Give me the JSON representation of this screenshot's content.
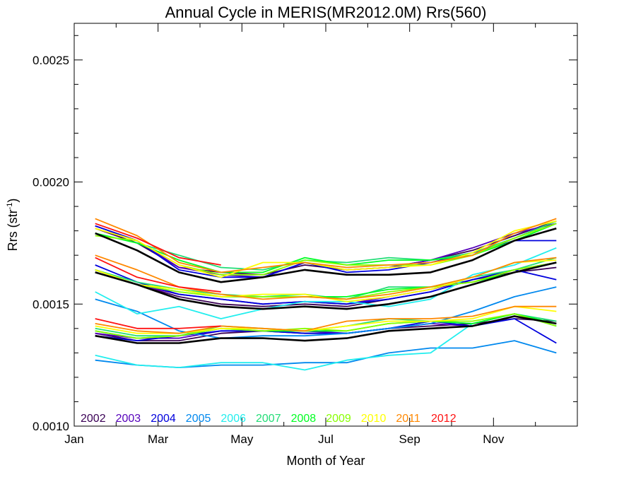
{
  "chart_data": {
    "type": "line",
    "title": "Annual Cycle in MERIS(MR2012.0M) Rrs(560)",
    "xlabel": "Month of Year",
    "ylabel_main": "Rrs (str",
    "ylabel_sup": "-1",
    "ylabel_tail": ")",
    "xlim": [
      0,
      12
    ],
    "ylim": [
      0.001,
      0.00265
    ],
    "x_ticks": [
      {
        "v": 0,
        "label": "Jan"
      },
      {
        "v": 2,
        "label": "Mar"
      },
      {
        "v": 4,
        "label": "May"
      },
      {
        "v": 6,
        "label": "Jul"
      },
      {
        "v": 8,
        "label": "Sep"
      },
      {
        "v": 10,
        "label": "Nov"
      }
    ],
    "y_ticks": [
      {
        "v": 0.001,
        "label": "0.0010"
      },
      {
        "v": 0.0015,
        "label": "0.0015"
      },
      {
        "v": 0.002,
        "label": "0.0020"
      },
      {
        "v": 0.0025,
        "label": "0.0025"
      }
    ],
    "legend_position": "bottom-left",
    "x": [
      0.5,
      1.5,
      2.5,
      3.5,
      4.5,
      5.5,
      6.5,
      7.5,
      8.5,
      9.5,
      10.5,
      11.5
    ],
    "series": [
      {
        "name": "2002",
        "color": "#3a0055",
        "values": [
          [
            0.00181,
            0.00175,
            0.00165,
            0.00163,
            0.00162,
            0.00166,
            0.00164,
            0.00165,
            0.00168,
            0.00172,
            0.00178,
            0.00184
          ],
          [
            0.00163,
            0.00158,
            0.00153,
            0.0015,
            0.00149,
            0.0015,
            0.00149,
            0.00152,
            0.00155,
            0.0016,
            0.00163,
            0.00165
          ],
          [
            0.00138,
            0.00135,
            0.00135,
            0.00138,
            0.00139,
            0.00138,
            0.00138,
            0.0014,
            0.00141,
            0.00142,
            0.00144,
            0.00143
          ]
        ]
      },
      {
        "name": "2003",
        "color": "#5500bb",
        "values": [
          [
            0.00182,
            0.00176,
            0.00165,
            0.00162,
            0.00161,
            0.00167,
            0.00164,
            0.00165,
            0.00168,
            0.00173,
            0.00179,
            0.00183
          ],
          [
            0.00164,
            0.00158,
            0.00154,
            0.00152,
            0.0015,
            0.00151,
            0.0015,
            0.00153,
            0.00156,
            0.0016,
            0.00164,
            0.00167
          ],
          [
            0.00138,
            0.00136,
            0.00136,
            0.00139,
            0.00139,
            0.00139,
            0.00138,
            0.0014,
            0.00142,
            0.00141,
            0.00145,
            0.00142
          ]
        ]
      },
      {
        "name": "2004",
        "color": "#0000dd",
        "values": [
          [
            0.00182,
            0.00176,
            0.00164,
            0.00161,
            0.00161,
            0.00167,
            0.00163,
            0.00164,
            0.00167,
            0.00171,
            0.00176,
            0.00176
          ],
          [
            0.00166,
            0.00159,
            0.00154,
            0.00152,
            0.0015,
            0.00151,
            0.0015,
            0.00152,
            0.00155,
            0.0016,
            0.00164,
            0.0016
          ],
          [
            0.00137,
            0.00135,
            0.00137,
            0.00139,
            0.00139,
            0.00138,
            0.00138,
            0.0014,
            0.00143,
            0.00141,
            0.00144,
            0.00134
          ]
        ]
      },
      {
        "name": "2005",
        "color": "#0088ee",
        "values": [
          [
            0.00152,
            0.00147,
            0.00139,
            0.00136,
            0.00137,
            0.00137,
            0.00138,
            0.0014,
            0.00142,
            0.00147,
            0.00153,
            0.00157
          ],
          [
            0.00127,
            0.00125,
            0.00124,
            0.00125,
            0.00125,
            0.00126,
            0.00126,
            0.0013,
            0.00132,
            0.00132,
            0.00135,
            0.0013
          ]
        ]
      },
      {
        "name": "2006",
        "color": "#22eeee",
        "values": [
          [
            0.00155,
            0.00146,
            0.00149,
            0.00144,
            0.00148,
            0.00151,
            0.00151,
            0.00149,
            0.00152,
            0.00162,
            0.00166,
            0.00173
          ],
          [
            0.00129,
            0.00125,
            0.00124,
            0.00126,
            0.00126,
            0.00123,
            0.00127,
            0.00129,
            0.0013,
            0.00142,
            0.00146,
            0.00141
          ]
        ]
      },
      {
        "name": "2007",
        "color": "#22dd77",
        "values": [
          [
            0.00179,
            0.00175,
            0.0017,
            0.00165,
            0.00164,
            0.00168,
            0.00167,
            0.00169,
            0.00168,
            0.00171,
            0.00177,
            0.00184
          ],
          [
            0.00164,
            0.00159,
            0.00156,
            0.00154,
            0.00153,
            0.00154,
            0.00152,
            0.00157,
            0.00157,
            0.00161,
            0.00164,
            0.00169
          ],
          [
            0.0014,
            0.00137,
            0.00137,
            0.00141,
            0.0014,
            0.00139,
            0.00141,
            0.00144,
            0.00143,
            0.00142,
            0.00146,
            0.00143
          ]
        ]
      },
      {
        "name": "2008",
        "color": "#00ff22",
        "values": [
          [
            0.00179,
            0.00175,
            0.00168,
            0.00163,
            0.00163,
            0.00169,
            0.00166,
            0.00168,
            0.00168,
            0.0017,
            0.00176,
            0.00183
          ],
          [
            0.00164,
            0.00158,
            0.00156,
            0.00153,
            0.00153,
            0.00153,
            0.00153,
            0.00156,
            0.00157,
            0.00159,
            0.00163,
            0.00167
          ],
          [
            0.00139,
            0.00136,
            0.00137,
            0.0014,
            0.00139,
            0.00139,
            0.00139,
            0.00142,
            0.00143,
            0.00142,
            0.00146,
            0.00142
          ]
        ]
      },
      {
        "name": "2009",
        "color": "#88ff00",
        "values": [
          [
            0.00178,
            0.00176,
            0.00166,
            0.00162,
            0.00162,
            0.00168,
            0.00166,
            0.00166,
            0.00166,
            0.0017,
            0.00177,
            0.00183
          ],
          [
            0.00163,
            0.00158,
            0.00155,
            0.00153,
            0.00153,
            0.00153,
            0.00152,
            0.00155,
            0.00157,
            0.00159,
            0.00164,
            0.00167
          ],
          [
            0.00139,
            0.00136,
            0.00137,
            0.0014,
            0.00139,
            0.0014,
            0.00139,
            0.00142,
            0.00143,
            0.00143,
            0.00146,
            0.00141
          ]
        ]
      },
      {
        "name": "2010",
        "color": "#ffff00",
        "values": [
          [
            0.00181,
            0.00176,
            0.00166,
            0.00161,
            0.00167,
            0.00167,
            0.00164,
            0.00165,
            0.00166,
            0.00171,
            0.0018,
            0.00184
          ],
          [
            0.00164,
            0.00158,
            0.00156,
            0.00153,
            0.00154,
            0.00154,
            0.00151,
            0.00153,
            0.00156,
            0.00161,
            0.00167,
            0.00168
          ],
          [
            0.00141,
            0.00138,
            0.00138,
            0.0014,
            0.0014,
            0.00139,
            0.00141,
            0.00143,
            0.00143,
            0.00144,
            0.00149,
            0.00147
          ]
        ]
      },
      {
        "name": "2011",
        "color": "#ff8800",
        "values": [
          [
            0.00185,
            0.00178,
            0.00167,
            0.00163,
            0.00165,
            0.00167,
            0.00165,
            0.00166,
            0.00167,
            0.0017,
            0.00179,
            0.00185
          ],
          [
            0.0017,
            0.00164,
            0.00157,
            0.00154,
            0.00152,
            0.00153,
            0.00152,
            0.00154,
            0.00157,
            0.00161,
            0.00167,
            0.00169
          ],
          [
            0.00142,
            0.00139,
            0.00138,
            0.00141,
            0.0014,
            0.00139,
            0.00143,
            0.00144,
            0.00144,
            0.00145,
            0.00149,
            0.00149
          ]
        ]
      },
      {
        "name": "2012",
        "color": "#ff1111",
        "values": [
          [
            0.00183,
            0.00177,
            0.00169,
            0.00166,
            null,
            null,
            null,
            null,
            null,
            null,
            null,
            null
          ],
          [
            0.00169,
            0.00161,
            0.00157,
            0.00155,
            null,
            null,
            null,
            null,
            null,
            null,
            null,
            null
          ],
          [
            0.00144,
            0.0014,
            0.0014,
            0.00141,
            null,
            null,
            null,
            null,
            null,
            null,
            null,
            null
          ]
        ]
      },
      {
        "name": "",
        "color": "#000000",
        "values": [
          [
            0.00179,
            0.00172,
            0.00163,
            0.00159,
            0.00161,
            0.00164,
            0.00162,
            0.00162,
            0.00163,
            0.00168,
            0.00176,
            0.00181
          ],
          [
            0.00163,
            0.00158,
            0.00152,
            0.00149,
            0.00148,
            0.00149,
            0.00148,
            0.0015,
            0.00153,
            0.00158,
            0.00163,
            0.00167
          ],
          [
            0.00137,
            0.00134,
            0.00134,
            0.00136,
            0.00136,
            0.00135,
            0.00136,
            0.00139,
            0.0014,
            0.00141,
            0.00145,
            0.00142
          ]
        ]
      }
    ]
  }
}
